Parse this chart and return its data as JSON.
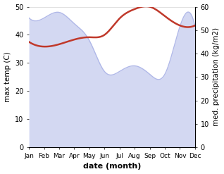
{
  "months": [
    "Jan",
    "Feb",
    "Mar",
    "Apr",
    "May",
    "Jun",
    "Jul",
    "Aug",
    "Sep",
    "Oct",
    "Nov",
    "Dec"
  ],
  "max_temp": [
    46,
    46,
    48,
    44,
    38,
    27,
    27,
    29,
    26,
    26,
    43,
    43
  ],
  "precip": [
    45,
    43,
    44,
    46,
    47,
    48,
    55,
    59,
    60,
    56,
    52,
    52
  ],
  "temp_color_fill": "#b0b8e8",
  "temp_color_line": "#a0a8d8",
  "precip_color": "#c0392b",
  "temp_ylim": [
    0,
    50
  ],
  "precip_ylim": [
    0,
    60
  ],
  "temp_yticks": [
    0,
    10,
    20,
    30,
    40,
    50
  ],
  "precip_yticks": [
    0,
    10,
    20,
    30,
    40,
    50,
    60
  ],
  "xlabel": "date (month)",
  "ylabel_left": "max temp (C)",
  "ylabel_right": "med. precipitation (kg/m2)",
  "background_color": "#ffffff",
  "fill_alpha": 0.55,
  "precip_linewidth": 1.8,
  "temp_linewidth": 1.0
}
